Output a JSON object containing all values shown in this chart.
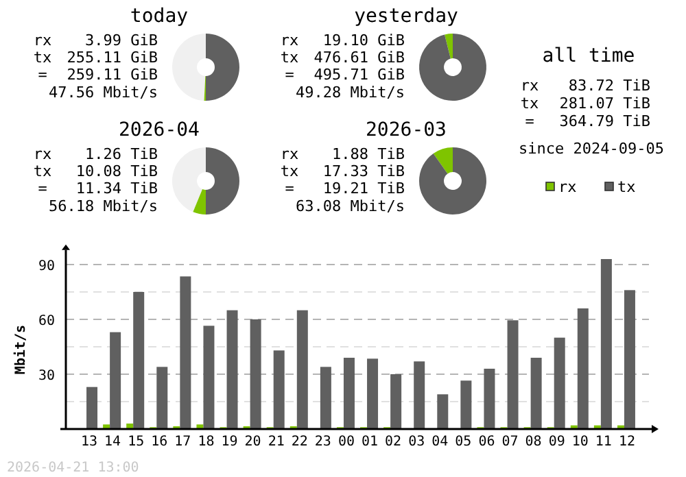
{
  "chart_data": [
    {
      "type": "donut",
      "title": "today",
      "categories": [
        null,
        null,
        null
      ],
      "values": [
        49.2,
        0.8,
        50
      ],
      "colors": [
        "#f0f0f0",
        "#7fc400",
        "#606060"
      ],
      "annotations": [
        "rx",
        "3.99 GiB",
        "tx",
        "255.11 GiB",
        "=",
        "259.11 GiB",
        "47.56 Mbit/s"
      ]
    },
    {
      "type": "donut",
      "title": "yesterday",
      "categories": [
        null,
        null,
        null
      ],
      "values": [
        0,
        3.9,
        96.1
      ],
      "colors": [
        "#f0f0f0",
        "#7fc400",
        "#606060"
      ],
      "annotations": [
        "rx",
        "19.10 GiB",
        "tx",
        "476.61 GiB",
        "=",
        "495.71 GiB",
        "49.28 Mbit/s"
      ]
    },
    {
      "type": "other",
      "title": "all time",
      "annotations": [
        "rx",
        "83.72 TiB",
        "tx",
        "281.07 TiB",
        "=",
        "364.79 TiB",
        "since 2024-09-05"
      ]
    },
    {
      "type": "donut",
      "title": "2026-04",
      "categories": [
        null,
        null,
        null
      ],
      "values": [
        43.8,
        6.2,
        50
      ],
      "colors": [
        "#f0f0f0",
        "#7fc400",
        "#606060"
      ],
      "annotations": [
        "rx",
        "1.26 TiB",
        "tx",
        "10.08 TiB",
        "=",
        "11.34 TiB",
        "56.18 Mbit/s"
      ]
    },
    {
      "type": "donut",
      "title": "2026-03",
      "categories": [
        null,
        null,
        null
      ],
      "values": [
        0,
        9.8,
        90.2
      ],
      "colors": [
        "#f0f0f0",
        "#7fc400",
        "#606060"
      ],
      "annotations": [
        "rx",
        "1.88 TiB",
        "tx",
        "17.33 TiB",
        "=",
        "19.21 TiB",
        "63.08 Mbit/s"
      ]
    },
    {
      "type": "bar",
      "categories": [
        "13",
        "14",
        "15",
        "16",
        "17",
        "18",
        "19",
        "20",
        "21",
        "22",
        "23",
        "00",
        "01",
        "02",
        "03",
        "04",
        "05",
        "06",
        "07",
        "08",
        "09",
        "10",
        "11",
        "12"
      ],
      "series": [
        {
          "name": "rx",
          "color": "#7fc400",
          "values": [
            0,
            2.5,
            3,
            1,
            1.5,
            2.5,
            1,
            1.5,
            1,
            1.5,
            0,
            1,
            1,
            1,
            0,
            0,
            0,
            1,
            1,
            1,
            1,
            2,
            2,
            2
          ]
        },
        {
          "name": "tx",
          "color": "#606060",
          "values": [
            23,
            53,
            75,
            34,
            83.5,
            56.5,
            65,
            60,
            43,
            65,
            34,
            39,
            38.5,
            30,
            37,
            19,
            26.5,
            33,
            59.5,
            39,
            50,
            66,
            93,
            76
          ]
        }
      ],
      "ylabel": "Mbit/s",
      "ylim": [
        0,
        98
      ],
      "yticks": [
        {
          "value": 15,
          "label": null
        },
        30,
        {
          "value": 45,
          "label": null
        },
        60,
        {
          "value": 75,
          "label": null
        },
        90
      ],
      "grid": "y",
      "legend": "top right",
      "annotations": [
        "2026-04-21 13:00"
      ]
    }
  ]
}
